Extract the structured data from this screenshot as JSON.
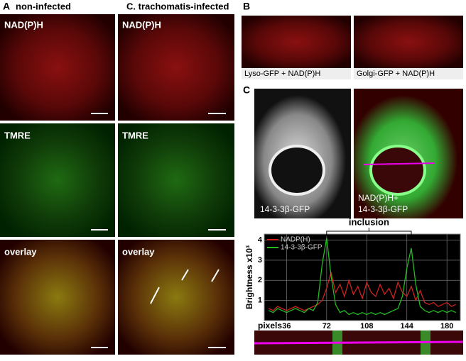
{
  "panel_a": {
    "label": "A",
    "column_titles": [
      "non-infected",
      "C. trachomatis-infected"
    ],
    "row_labels": [
      "NAD(P)H",
      "TMRE",
      "overlay"
    ]
  },
  "panel_b": {
    "label": "B",
    "image_labels": [
      "Lyso-GFP + NAD(P)H",
      "Golgi-GFP + NAD(P)H"
    ]
  },
  "panel_c": {
    "label": "C",
    "image_labels": [
      "14-3-3β-GFP",
      [
        "NAD(P)H+",
        "14-3-3β-GFP"
      ]
    ],
    "chart_data": {
      "type": "line",
      "annotation": "inclusion",
      "xlabel": "pixels",
      "ylabel": "Brightness x10³",
      "x": [
        20,
        24,
        28,
        32,
        36,
        40,
        44,
        48,
        52,
        56,
        60,
        64,
        68,
        72,
        76,
        80,
        84,
        88,
        92,
        96,
        100,
        104,
        108,
        112,
        116,
        120,
        124,
        128,
        132,
        136,
        140,
        144,
        148,
        152,
        156,
        160,
        164,
        168,
        172,
        176,
        180,
        184,
        188
      ],
      "series": [
        {
          "name": "NADP(H)",
          "color": "#cc2222",
          "values": [
            0.6,
            0.5,
            0.7,
            0.6,
            0.5,
            0.6,
            0.7,
            0.6,
            0.5,
            0.6,
            0.7,
            0.8,
            1.0,
            1.6,
            2.4,
            1.4,
            1.8,
            1.2,
            2.0,
            1.3,
            1.7,
            1.1,
            1.9,
            1.4,
            1.2,
            1.8,
            1.3,
            1.6,
            1.1,
            1.9,
            1.4,
            1.2,
            1.7,
            1.0,
            1.5,
            0.9,
            0.8,
            0.9,
            0.7,
            0.8,
            0.9,
            0.7,
            0.8
          ]
        },
        {
          "name": "14-3-3β-GFP",
          "color": "#22bb22",
          "values": [
            0.5,
            0.4,
            0.6,
            0.5,
            0.4,
            0.5,
            0.6,
            0.5,
            0.4,
            0.6,
            0.5,
            0.9,
            2.8,
            4.1,
            2.2,
            0.8,
            0.4,
            0.5,
            0.3,
            0.4,
            0.3,
            0.4,
            0.3,
            0.4,
            0.3,
            0.4,
            0.3,
            0.4,
            0.5,
            0.6,
            1.2,
            2.6,
            3.6,
            1.8,
            0.7,
            0.5,
            0.4,
            0.5,
            0.4,
            0.5,
            0.4,
            0.5,
            0.4
          ]
        }
      ],
      "xlim": [
        16,
        192
      ],
      "ylim": [
        0,
        4.3
      ],
      "xticks": [
        36,
        72,
        108,
        144,
        180
      ],
      "yticks": [
        1,
        2,
        3,
        4
      ],
      "inclusion_range": [
        72,
        148
      ],
      "grid": true,
      "legend": "upper-left"
    }
  }
}
